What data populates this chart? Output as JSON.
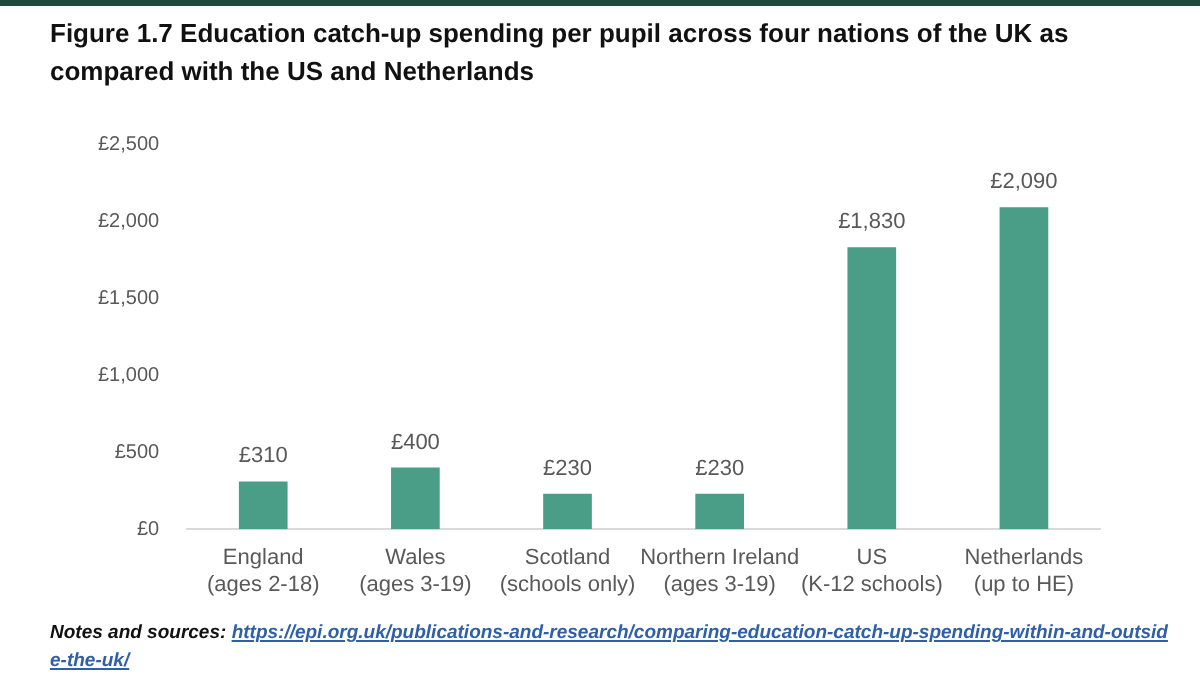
{
  "chart_data": {
    "type": "bar",
    "title": "Figure 1.7 Education catch-up spending per pupil across four nations of the UK as compared with the US and Netherlands",
    "categories": [
      "England\n(ages 2-18)",
      "Wales\n(ages 3-19)",
      "Scotland\n(schools only)",
      "Northern Ireland\n(ages 3-19)",
      "US\n(K-12 schools)",
      "Netherlands\n(up to HE)"
    ],
    "values": [
      310,
      400,
      230,
      230,
      1830,
      2090
    ],
    "value_labels": [
      "£310",
      "£400",
      "£230",
      "£230",
      "£1,830",
      "£2,090"
    ],
    "color": "#4a9e87",
    "ylim": [
      0,
      2500
    ],
    "yticks": [
      {
        "value": 0,
        "label": "£0"
      },
      {
        "value": 500,
        "label": "£500"
      },
      {
        "value": 1000,
        "label": "£1,000"
      },
      {
        "value": 1500,
        "label": "£1,500"
      },
      {
        "value": 2000,
        "label": "£2,000"
      },
      {
        "value": 2500,
        "label": "£2,500"
      }
    ],
    "grid": false,
    "legend": false,
    "annotations": [
      "Notes and sources:",
      "https://epi.org.uk/publications-and-research/comparing-education-catch-up-spending-within-and-outside-the-uk/"
    ]
  }
}
